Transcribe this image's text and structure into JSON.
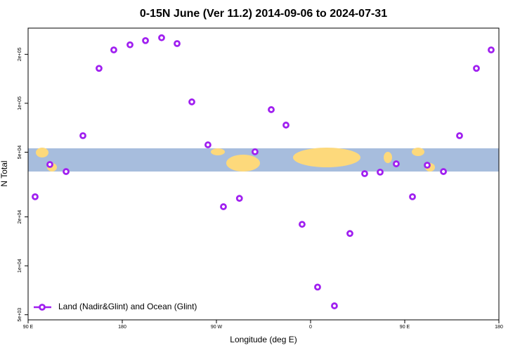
{
  "chart_data": {
    "type": "scatter",
    "title": "0-15N June (Ver 11.2)   2014-09-06 to 2024-07-31",
    "x_label": "Longitude (deg E)",
    "y_label": "N Total",
    "log_y": true,
    "legend_position": "lower left",
    "xlim": [
      90,
      540
    ],
    "ylim": [
      4650,
      290000
    ],
    "xticks": [
      {
        "value": 90,
        "label": "90 E"
      },
      {
        "value": 180,
        "label": "180"
      },
      {
        "value": 270,
        "label": "90 W"
      },
      {
        "value": 360,
        "label": "0"
      },
      {
        "value": 450,
        "label": "90 E"
      },
      {
        "value": 540,
        "label": "180"
      }
    ],
    "yticks": [
      {
        "value": 5000,
        "label": "5e+03"
      },
      {
        "value": 10000,
        "label": "1e+04"
      },
      {
        "value": 20000,
        "label": "2e+04"
      },
      {
        "value": 50000,
        "label": "5e+04"
      },
      {
        "value": 100000,
        "label": "1e+05"
      },
      {
        "value": 200000,
        "label": "2e+05"
      }
    ],
    "series": [
      {
        "name": "Land (Nadir&Glint) and Ocean (Glint)",
        "color": "#a020f0",
        "x": [
          96.7,
          110.8,
          126.3,
          142.4,
          157.8,
          171.9,
          187.4,
          202.2,
          217.6,
          232.4,
          246.5,
          261.9,
          276.7,
          292.0,
          306.9,
          322.4,
          336.5,
          351.9,
          366.7,
          382.8,
          397.6,
          411.7,
          426.5,
          441.9,
          457.4,
          471.5,
          487.0,
          502.4,
          518.5,
          532.6
        ],
        "values": [
          26600,
          42000,
          38000,
          63200,
          164000,
          213000,
          229000,
          243000,
          253000,
          233000,
          102000,
          55500,
          23100,
          26000,
          50300,
          91400,
          73400,
          18000,
          7400,
          5670,
          15800,
          36900,
          37700,
          42400,
          26600,
          41600,
          38000,
          63200,
          164000,
          213000
        ]
      }
    ]
  }
}
